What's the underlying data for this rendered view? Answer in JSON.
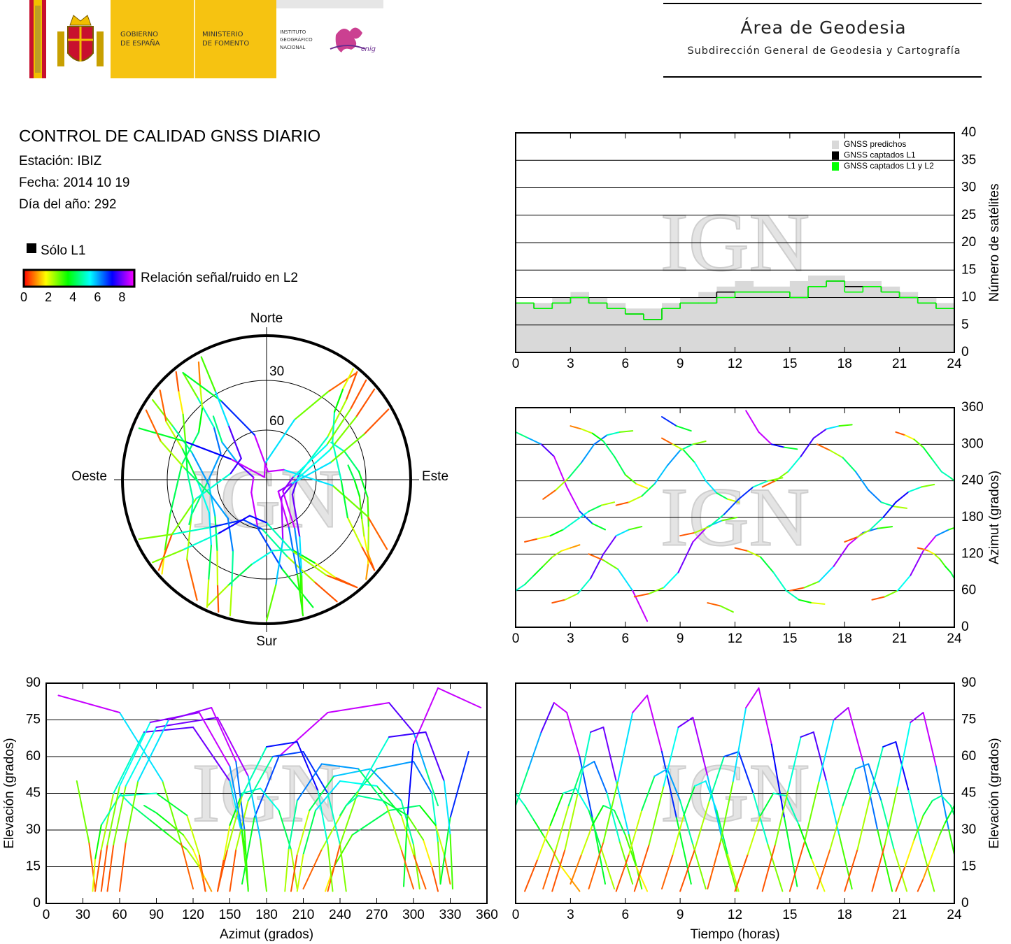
{
  "header": {
    "gov": [
      "GOBIERNO",
      "DE ESPAÑA"
    ],
    "ministry": [
      "MINISTERIO",
      "DE FOMENTO"
    ],
    "institute": [
      "INSTITUTO",
      "GEOGRÁFICO",
      "NACIONAL"
    ],
    "cnig": "cnig",
    "area": "Área de Geodesia",
    "subdirection": "Subdirección General de Geodesia y Cartografía"
  },
  "info": {
    "title": "CONTROL DE CALIDAD GNSS DIARIO",
    "station": "Estación: IBIZ",
    "date": "Fecha: 2014 10 19",
    "doy": "Día del año: 292"
  },
  "legend": {
    "l1_only": "Sólo L1",
    "l1_color": "#000000",
    "colorbar_label": "Relación señal/ruido en L2",
    "clim": [
      0,
      9
    ],
    "ticks": [
      0,
      2,
      4,
      6,
      8
    ],
    "colors": [
      "#ff0000",
      "#ffff00",
      "#00ff00",
      "#00ffff",
      "#0000ff",
      "#ff00ff"
    ]
  },
  "passes": [
    {
      "t": [
        0,
        0.7,
        1.4,
        2.1,
        2.8,
        3.5,
        4.2,
        4.9
      ],
      "az": [
        320,
        310,
        300,
        280,
        230,
        190,
        170,
        160
      ],
      "el": [
        40,
        55,
        70,
        82,
        78,
        60,
        35,
        8
      ],
      "snr": [
        4.5,
        6,
        7.8,
        8.6,
        8.6,
        6.7,
        3.9,
        0.9
      ]
    },
    {
      "t": [
        0,
        0.5,
        1,
        1.5,
        2,
        2.5,
        3,
        3.5
      ],
      "az": [
        60,
        70,
        85,
        100,
        115,
        125,
        130,
        135
      ],
      "el": [
        45,
        40,
        34,
        28,
        22,
        15,
        10,
        5
      ],
      "snr": [
        5,
        4.4,
        3.8,
        3.1,
        2.4,
        1.7,
        1.1,
        0.6
      ]
    },
    {
      "t": [
        0.5,
        1.2,
        1.9,
        2.6,
        3.3,
        4,
        4.7,
        5.4
      ],
      "az": [
        140,
        145,
        150,
        160,
        175,
        190,
        200,
        205
      ],
      "el": [
        5,
        18,
        32,
        45,
        47,
        38,
        22,
        6
      ],
      "snr": [
        0.6,
        2,
        3.6,
        5,
        5.2,
        4.2,
        2.4,
        0.7
      ]
    },
    {
      "t": [
        1.5,
        2.2,
        2.9,
        3.6,
        4.3,
        5,
        5.7,
        6.4
      ],
      "az": [
        210,
        225,
        245,
        270,
        300,
        315,
        320,
        322
      ],
      "el": [
        6,
        22,
        40,
        55,
        58,
        45,
        25,
        8
      ],
      "snr": [
        0.7,
        2.4,
        4.4,
        6.1,
        6.4,
        5,
        2.8,
        0.9
      ]
    },
    {
      "t": [
        2,
        2.7,
        3.4,
        4.1,
        4.8,
        5.5,
        6.2,
        6.9
      ],
      "az": [
        40,
        45,
        55,
        80,
        120,
        150,
        160,
        165
      ],
      "el": [
        5,
        22,
        45,
        70,
        72,
        50,
        28,
        6
      ],
      "snr": [
        0.6,
        2.4,
        5,
        7.8,
        8,
        5.6,
        3.1,
        0.7
      ]
    },
    {
      "t": [
        3,
        3.6,
        4.2,
        4.8,
        5.4,
        6,
        6.6,
        7.2
      ],
      "az": [
        330,
        325,
        318,
        305,
        280,
        250,
        235,
        228
      ],
      "el": [
        8,
        20,
        32,
        40,
        38,
        28,
        15,
        5
      ],
      "snr": [
        0.9,
        2.2,
        3.6,
        4.4,
        4.2,
        3.1,
        1.7,
        0.6
      ]
    },
    {
      "t": [
        4,
        4.8,
        5.6,
        6.4,
        7.2,
        8,
        8.8,
        9.6
      ],
      "az": [
        120,
        110,
        95,
        60,
        10,
        345,
        330,
        322
      ],
      "el": [
        6,
        25,
        50,
        78,
        85,
        62,
        35,
        8
      ],
      "snr": [
        0.7,
        2.8,
        5.6,
        8.6,
        8.6,
        6.9,
        3.9,
        0.9
      ]
    },
    {
      "t": [
        5.5,
        6.2,
        6.9,
        7.6,
        8.3,
        9,
        9.7,
        10.4
      ],
      "az": [
        200,
        205,
        215,
        235,
        265,
        290,
        300,
        305
      ],
      "el": [
        5,
        20,
        38,
        52,
        55,
        42,
        24,
        6
      ],
      "snr": [
        0.6,
        2.2,
        4.2,
        5.8,
        6.1,
        4.7,
        2.7,
        0.7
      ]
    },
    {
      "t": [
        6.5,
        7.3,
        8.1,
        8.9,
        9.7,
        10.5,
        11.3,
        12.1
      ],
      "az": [
        50,
        55,
        65,
        90,
        140,
        165,
        175,
        180
      ],
      "el": [
        5,
        24,
        48,
        72,
        76,
        52,
        26,
        5
      ],
      "snr": [
        0.6,
        2.7,
        5.3,
        8,
        8.4,
        5.8,
        2.9,
        0.6
      ]
    },
    {
      "t": [
        8,
        8.6,
        9.2,
        9.8,
        10.4,
        11,
        11.6,
        12.2
      ],
      "az": [
        310,
        300,
        290,
        270,
        240,
        220,
        210,
        205
      ],
      "el": [
        6,
        20,
        36,
        48,
        50,
        38,
        20,
        5
      ],
      "snr": [
        0.7,
        2.2,
        4,
        5.3,
        5.6,
        4.2,
        2.2,
        0.6
      ]
    },
    {
      "t": [
        9,
        9.8,
        10.6,
        11.4,
        12.2,
        13,
        13.8,
        14.6
      ],
      "az": [
        150,
        155,
        165,
        185,
        210,
        230,
        240,
        245
      ],
      "el": [
        5,
        22,
        42,
        60,
        62,
        45,
        24,
        5
      ],
      "snr": [
        0.6,
        2.4,
        4.7,
        6.7,
        6.9,
        5,
        2.7,
        0.6
      ]
    },
    {
      "t": [
        10.5,
        11.2,
        11.9,
        12.6,
        13.3,
        14,
        14.7,
        15.4
      ],
      "az": [
        40,
        35,
        25,
        355,
        320,
        300,
        295,
        292
      ],
      "el": [
        6,
        25,
        50,
        80,
        88,
        65,
        35,
        7
      ],
      "snr": [
        0.7,
        2.8,
        5.6,
        8.6,
        8.6,
        7.2,
        3.9,
        0.8
      ]
    },
    {
      "t": [
        12,
        12.7,
        13.4,
        14.1,
        14.8,
        15.5,
        16.2,
        16.9
      ],
      "az": [
        130,
        125,
        115,
        90,
        60,
        45,
        40,
        38
      ],
      "el": [
        5,
        20,
        36,
        45,
        44,
        32,
        18,
        5
      ],
      "snr": [
        0.6,
        2.2,
        4,
        5,
        4.9,
        3.6,
        2,
        0.6
      ]
    },
    {
      "t": [
        13.5,
        14.2,
        14.9,
        15.6,
        16.3,
        17,
        17.7,
        18.4
      ],
      "az": [
        230,
        240,
        255,
        280,
        310,
        325,
        330,
        332
      ],
      "el": [
        5,
        24,
        46,
        68,
        70,
        50,
        28,
        6
      ],
      "snr": [
        0.6,
        2.7,
        5.1,
        7.6,
        7.8,
        5.6,
        3.1,
        0.7
      ]
    },
    {
      "t": [
        15,
        15.8,
        16.6,
        17.4,
        18.2,
        19,
        19.8,
        20.6
      ],
      "az": [
        60,
        65,
        75,
        100,
        135,
        155,
        162,
        165
      ],
      "el": [
        5,
        25,
        50,
        75,
        80,
        58,
        30,
        5
      ],
      "snr": [
        0.6,
        2.8,
        5.6,
        8.3,
        8.6,
        6.4,
        3.3,
        0.6
      ]
    },
    {
      "t": [
        16.5,
        17.2,
        17.9,
        18.6,
        19.3,
        20,
        20.7,
        21.4
      ],
      "az": [
        300,
        290,
        278,
        255,
        225,
        205,
        198,
        195
      ],
      "el": [
        6,
        22,
        40,
        55,
        57,
        42,
        22,
        5
      ],
      "snr": [
        0.7,
        2.4,
        4.4,
        6.1,
        6.3,
        4.7,
        2.4,
        0.6
      ]
    },
    {
      "t": [
        18,
        18.7,
        19.4,
        20.1,
        20.8,
        21.5,
        22.2,
        22.9
      ],
      "az": [
        140,
        148,
        160,
        180,
        205,
        222,
        230,
        234
      ],
      "el": [
        5,
        22,
        44,
        64,
        66,
        46,
        24,
        5
      ],
      "snr": [
        0.6,
        2.4,
        4.9,
        7.1,
        7.3,
        5.1,
        2.7,
        0.6
      ]
    },
    {
      "t": [
        19.5,
        20.2,
        20.9,
        21.6,
        22.3,
        23,
        23.7,
        24
      ],
      "az": [
        45,
        50,
        60,
        85,
        125,
        150,
        160,
        163
      ],
      "el": [
        5,
        24,
        48,
        74,
        78,
        56,
        30,
        20
      ],
      "snr": [
        0.6,
        2.7,
        5.3,
        8.2,
        8.6,
        6.2,
        3.3,
        2.2
      ]
    },
    {
      "t": [
        20.8,
        21.3,
        21.8,
        22.3,
        22.8,
        23.3,
        23.8,
        24
      ],
      "az": [
        320,
        315,
        308,
        295,
        275,
        255,
        245,
        240
      ],
      "el": [
        5,
        15,
        26,
        36,
        42,
        44,
        40,
        36
      ],
      "snr": [
        0.6,
        1.7,
        2.9,
        4,
        4.7,
        4.9,
        4.4,
        4
      ]
    },
    {
      "t": [
        22,
        22.3,
        22.6,
        22.9,
        23.2,
        23.5,
        23.8,
        24
      ],
      "az": [
        130,
        128,
        125,
        120,
        112,
        100,
        90,
        80
      ],
      "el": [
        5,
        10,
        16,
        22,
        28,
        33,
        37,
        40
      ],
      "snr": [
        0.6,
        1.1,
        1.8,
        2.4,
        3.1,
        3.7,
        4.1,
        4.4
      ]
    }
  ],
  "chart_data": [
    {
      "type": "polar",
      "directions": [
        "Norte",
        "Este",
        "Sur",
        "Oeste"
      ],
      "rlim": [
        0,
        90
      ],
      "rticks": [
        30,
        60
      ],
      "watermark": "IGN"
    },
    {
      "type": "step",
      "watermark": "IGN",
      "ylabel": "Número de satélites",
      "xlim": [
        0,
        24
      ],
      "xticks": [
        0,
        3,
        6,
        9,
        12,
        15,
        18,
        21,
        24
      ],
      "ylim": [
        0,
        40
      ],
      "yticks": [
        0,
        5,
        10,
        15,
        20,
        25,
        30,
        35,
        40
      ],
      "grid": true,
      "x": [
        0,
        1,
        2,
        3,
        4,
        5,
        6,
        7,
        8,
        9,
        10,
        11,
        12,
        13,
        14,
        15,
        16,
        17,
        18,
        19,
        20,
        21,
        22,
        23
      ],
      "series": [
        {
          "name": "GNSS predichos",
          "color": "#d9d9d9",
          "values": [
            9,
            9,
            10,
            11,
            10,
            9,
            8,
            8,
            9,
            10,
            11,
            12,
            13,
            12,
            12,
            13,
            14,
            14,
            13,
            13,
            12,
            11,
            10,
            9
          ]
        },
        {
          "name": "GNSS captados L1",
          "color": "#000000",
          "values": [
            9,
            8,
            9,
            10,
            9,
            8,
            7,
            6,
            8,
            9,
            9,
            11,
            11,
            11,
            11,
            10,
            12,
            13,
            12,
            12,
            11,
            10,
            9,
            8
          ]
        },
        {
          "name": "GNSS captados L1 y L2",
          "color": "#00ff00",
          "values": [
            9,
            8,
            9,
            10,
            9,
            8,
            7,
            6,
            8,
            9,
            9,
            10,
            11,
            11,
            11,
            10,
            12,
            13,
            11,
            12,
            11,
            10,
            9,
            8
          ]
        }
      ]
    },
    {
      "type": "track",
      "x_field": "t",
      "y_field": "az",
      "watermark": "IGN",
      "ylabel": "Azimut (grados)",
      "xlim": [
        0,
        24
      ],
      "xticks": [
        0,
        3,
        6,
        9,
        12,
        15,
        18,
        21,
        24
      ],
      "ylim": [
        0,
        360
      ],
      "yticks": [
        0,
        60,
        120,
        180,
        240,
        300,
        360
      ],
      "grid": true
    },
    {
      "type": "track",
      "x_field": "az",
      "y_field": "el",
      "watermark": "IGN",
      "xlabel": "Azimut (grados)",
      "ylabel": "Elevación (grados)",
      "xlim": [
        0,
        360
      ],
      "xticks": [
        0,
        30,
        60,
        90,
        120,
        150,
        180,
        210,
        240,
        270,
        300,
        330,
        360
      ],
      "ylim": [
        0,
        90
      ],
      "yticks": [
        0,
        15,
        30,
        45,
        60,
        75,
        90
      ],
      "grid": true
    },
    {
      "type": "track",
      "x_field": "t",
      "y_field": "el",
      "watermark": "IGN",
      "xlabel": "Tiempo (horas)",
      "ylabel": "Elevación (grados)",
      "xlim": [
        0,
        24
      ],
      "xticks": [
        0,
        3,
        6,
        9,
        12,
        15,
        18,
        21,
        24
      ],
      "ylim": [
        0,
        90
      ],
      "yticks": [
        0,
        15,
        30,
        45,
        60,
        75,
        90
      ],
      "grid": true
    }
  ]
}
